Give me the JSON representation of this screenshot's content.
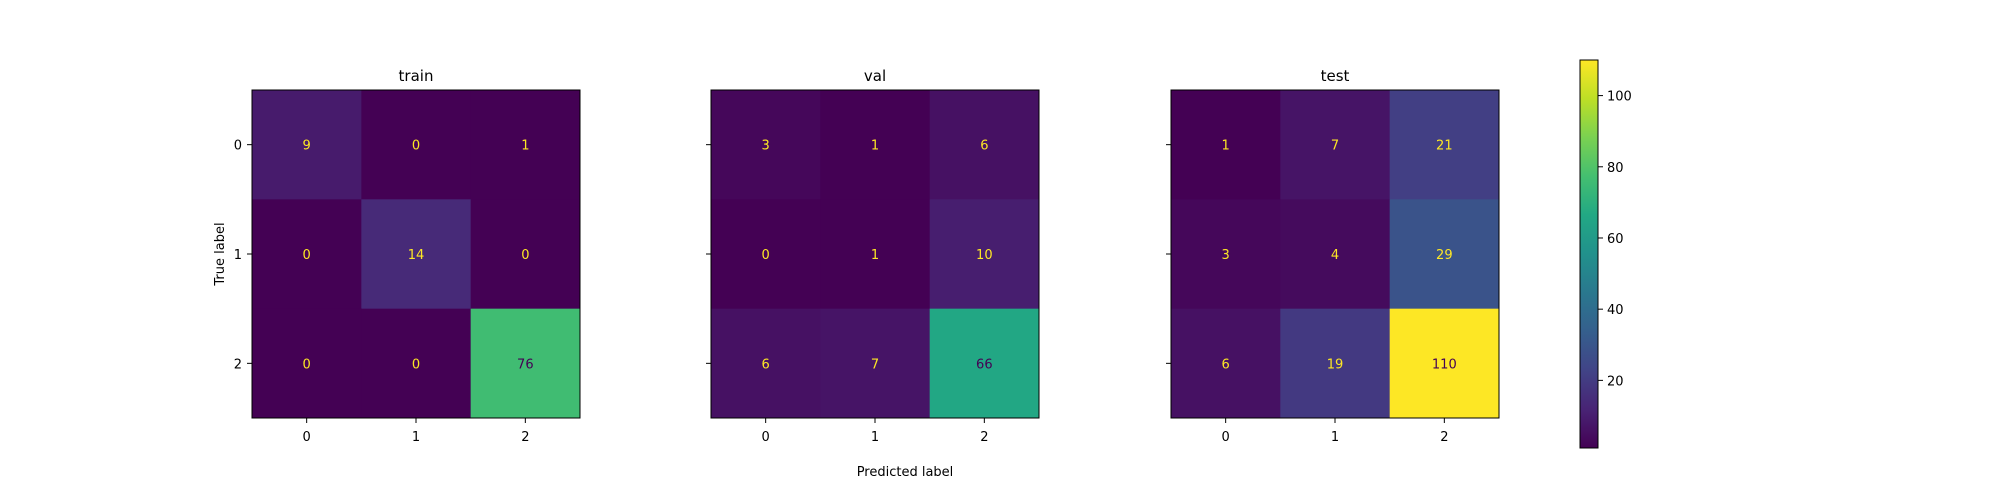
{
  "chart_data": {
    "type": "heatmap",
    "colormap": "viridis",
    "xlabel": "Predicted label",
    "ylabel": "True label",
    "vmin": 1,
    "vmax": 110,
    "colorbar_ticks": [
      20,
      40,
      60,
      80,
      100
    ],
    "text_color_dark_cells": "#fde725",
    "text_color_light_cells": "#440154",
    "panels": [
      {
        "title": "train",
        "x_ticklabels": [
          "0",
          "1",
          "2"
        ],
        "y_ticklabels": [
          "0",
          "1",
          "2"
        ],
        "matrix": [
          [
            9,
            0,
            1
          ],
          [
            0,
            14,
            0
          ],
          [
            0,
            0,
            76
          ]
        ]
      },
      {
        "title": "val",
        "x_ticklabels": [
          "0",
          "1",
          "2"
        ],
        "y_ticklabels": [],
        "matrix": [
          [
            3,
            1,
            6
          ],
          [
            0,
            1,
            10
          ],
          [
            6,
            7,
            66
          ]
        ]
      },
      {
        "title": "test",
        "x_ticklabels": [
          "0",
          "1",
          "2"
        ],
        "y_ticklabels": [],
        "matrix": [
          [
            1,
            7,
            21
          ],
          [
            3,
            4,
            29
          ],
          [
            6,
            19,
            110
          ]
        ]
      }
    ]
  }
}
